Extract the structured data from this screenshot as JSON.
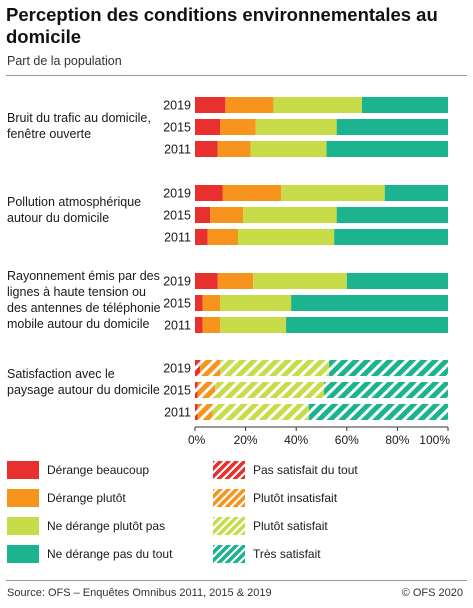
{
  "title": "Perception des conditions environnementales au domicile",
  "subtitle": "Part de la population",
  "source": "Source: OFS – Enquêtes Omnibus 2011, 2015 & 2019",
  "copyright": "© OFS 2020",
  "colors": {
    "red": "#e8302f",
    "orange": "#f7941d",
    "lime": "#c8dc4a",
    "teal": "#1bb48f"
  },
  "chart_data": {
    "type": "bar",
    "orientation": "horizontal",
    "stacked": true,
    "xlim": [
      0,
      100
    ],
    "x_ticks": [
      "0%",
      "20%",
      "40%",
      "60%",
      "80%",
      "100%"
    ],
    "grid": false,
    "legend_position": "bottom",
    "legend": [
      {
        "label": "Dérange beaucoup",
        "color": "#e8302f",
        "hatched": false
      },
      {
        "label": "Dérange plutôt",
        "color": "#f7941d",
        "hatched": false
      },
      {
        "label": "Ne dérange plutôt pas",
        "color": "#c8dc4a",
        "hatched": false
      },
      {
        "label": "Ne dérange pas du tout",
        "color": "#1bb48f",
        "hatched": false
      },
      {
        "label": "Pas satisfait du tout",
        "color": "#e8302f",
        "hatched": true
      },
      {
        "label": "Plutôt insatisfait",
        "color": "#f7941d",
        "hatched": true
      },
      {
        "label": "Plutôt satisfait",
        "color": "#c8dc4a",
        "hatched": true
      },
      {
        "label": "Très satisfait",
        "color": "#1bb48f",
        "hatched": true
      }
    ],
    "groups": [
      {
        "label": "Bruit du trafic au domicile, fenêtre ouverte",
        "hatched": false,
        "rows": [
          {
            "year": "2019",
            "values": [
              12,
              19,
              35,
              34
            ]
          },
          {
            "year": "2015",
            "values": [
              10,
              14,
              32,
              44
            ]
          },
          {
            "year": "2011",
            "values": [
              9,
              13,
              30,
              48
            ]
          }
        ]
      },
      {
        "label": "Pollution atmosphérique autour du domicile",
        "hatched": false,
        "rows": [
          {
            "year": "2019",
            "values": [
              11,
              23,
              41,
              25
            ]
          },
          {
            "year": "2015",
            "values": [
              6,
              13,
              37,
              44
            ]
          },
          {
            "year": "2011",
            "values": [
              5,
              12,
              38,
              45
            ]
          }
        ]
      },
      {
        "label": "Rayonnement émis par des lignes à haute tension ou des antennes de téléphonie mobile autour du domicile",
        "hatched": false,
        "rows": [
          {
            "year": "2019",
            "values": [
              9,
              14,
              37,
              40
            ]
          },
          {
            "year": "2015",
            "values": [
              3,
              7,
              28,
              62
            ]
          },
          {
            "year": "2011",
            "values": [
              3,
              7,
              26,
              64
            ]
          }
        ]
      },
      {
        "label": "Satisfaction avec le paysage autour du domicile",
        "hatched": true,
        "rows": [
          {
            "year": "2019",
            "values": [
              2,
              8,
              43,
              47
            ]
          },
          {
            "year": "2015",
            "values": [
              1,
              7,
              43,
              49
            ]
          },
          {
            "year": "2011",
            "values": [
              1,
              6,
              38,
              55
            ]
          }
        ]
      }
    ]
  }
}
